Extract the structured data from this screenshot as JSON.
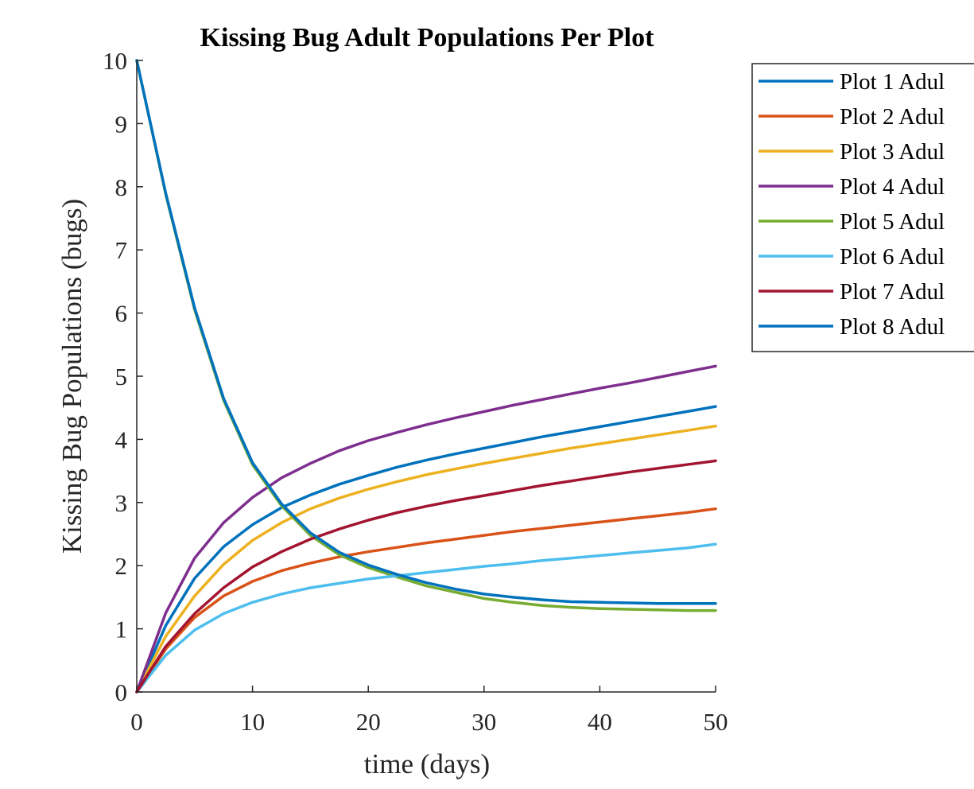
{
  "chart_data": {
    "type": "line",
    "title": "Kissing Bug Adult Populations Per Plot",
    "xlabel": "time (days)",
    "ylabel": "Kissing Bug Populations (bugs)",
    "xlim": [
      0,
      50
    ],
    "ylim": [
      0,
      10
    ],
    "xticks": [
      0,
      10,
      20,
      30,
      40,
      50
    ],
    "yticks": [
      0,
      1,
      2,
      3,
      4,
      5,
      6,
      7,
      8,
      9,
      10
    ],
    "grid": false,
    "legend_position": "outside-top-right",
    "x": [
      0,
      2.5,
      5,
      7.5,
      10,
      12.5,
      15,
      17.5,
      20,
      22.5,
      25,
      27.5,
      30,
      32.5,
      35,
      37.5,
      40,
      42.5,
      45,
      47.5,
      50
    ],
    "series": [
      {
        "name": "Plot 1 Adul",
        "color": "#0072BD",
        "values": [
          0,
          1.05,
          1.8,
          2.3,
          2.65,
          2.92,
          3.12,
          3.29,
          3.43,
          3.56,
          3.67,
          3.77,
          3.86,
          3.95,
          4.04,
          4.12,
          4.2,
          4.28,
          4.36,
          4.44,
          4.52
        ]
      },
      {
        "name": "Plot 2 Adul",
        "color": "#D95319",
        "values": [
          0,
          0.68,
          1.18,
          1.52,
          1.75,
          1.92,
          2.04,
          2.14,
          2.22,
          2.29,
          2.36,
          2.42,
          2.48,
          2.54,
          2.59,
          2.64,
          2.69,
          2.74,
          2.79,
          2.84,
          2.9
        ]
      },
      {
        "name": "Plot 3 Adul",
        "color": "#EDB120",
        "values": [
          0,
          0.88,
          1.52,
          2.02,
          2.4,
          2.68,
          2.9,
          3.07,
          3.21,
          3.33,
          3.44,
          3.53,
          3.62,
          3.7,
          3.78,
          3.86,
          3.93,
          4.0,
          4.07,
          4.14,
          4.21
        ]
      },
      {
        "name": "Plot 4 Adul",
        "color": "#7E2F8E",
        "values": [
          0,
          1.25,
          2.12,
          2.68,
          3.08,
          3.39,
          3.62,
          3.82,
          3.98,
          4.11,
          4.23,
          4.34,
          4.44,
          4.54,
          4.63,
          4.72,
          4.81,
          4.89,
          4.98,
          5.07,
          5.16
        ]
      },
      {
        "name": "Plot 5 Adul",
        "color": "#77AC30",
        "values": [
          10,
          7.88,
          6.05,
          4.62,
          3.6,
          2.95,
          2.48,
          2.17,
          1.97,
          1.82,
          1.68,
          1.58,
          1.48,
          1.42,
          1.37,
          1.34,
          1.32,
          1.31,
          1.3,
          1.29,
          1.29
        ]
      },
      {
        "name": "Plot 6 Adul",
        "color": "#4DBEEE",
        "values": [
          0,
          0.58,
          0.98,
          1.24,
          1.42,
          1.55,
          1.65,
          1.72,
          1.79,
          1.84,
          1.89,
          1.94,
          1.99,
          2.03,
          2.08,
          2.12,
          2.16,
          2.2,
          2.24,
          2.28,
          2.34
        ]
      },
      {
        "name": "Plot 7 Adul",
        "color": "#A2142F",
        "values": [
          0,
          0.72,
          1.24,
          1.65,
          1.98,
          2.22,
          2.42,
          2.58,
          2.72,
          2.84,
          2.94,
          3.03,
          3.11,
          3.19,
          3.27,
          3.34,
          3.41,
          3.48,
          3.54,
          3.6,
          3.66
        ]
      },
      {
        "name": "Plot 8 Adul",
        "color": "#0072BD",
        "values": [
          10,
          7.9,
          6.08,
          4.65,
          3.63,
          2.98,
          2.52,
          2.21,
          2.01,
          1.86,
          1.73,
          1.63,
          1.55,
          1.5,
          1.46,
          1.43,
          1.42,
          1.41,
          1.4,
          1.4,
          1.4
        ]
      }
    ]
  }
}
